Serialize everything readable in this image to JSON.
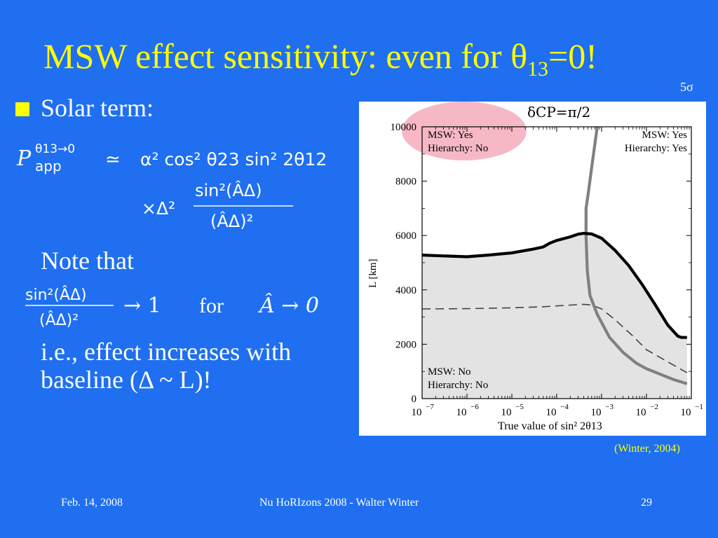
{
  "slide": {
    "title_main": "MSW effect sensitivity: even for θ",
    "title_sub": "13",
    "title_tail": "=0!",
    "significance": "5σ",
    "bullet": "Solar term:",
    "note": "Note that",
    "conclusion": "i.e., effect increases with baseline (Δ ~ L)!",
    "citation": "(Winter, 2004)"
  },
  "formula": {
    "P": "P",
    "P_sup": "θ13→0",
    "P_sub": "app",
    "approx": "≃",
    "rhs": "α² cos² θ23 sin² 2θ12",
    "times": "×Δ²",
    "frac_num": "sin²(ÂΔ)",
    "frac_den": "(ÂΔ)²"
  },
  "formula2": {
    "frac_num": "sin²(ÂΔ)",
    "frac_den": "(ÂΔ)²",
    "arrow": "→ 1",
    "for": "for",
    "limit": "Â → 0"
  },
  "footer": {
    "date": "Feb. 14, 2008",
    "talk": "Nu HoRIzons 2008 - Walter Winter",
    "page": "29"
  },
  "colors": {
    "background": "#1f6ff0",
    "title": "#ffff00",
    "highlight_ellipse": "#f7b8c6",
    "region_fill": "#e3e3e3"
  },
  "chart_data": {
    "type": "line",
    "title": "δCP=π/2",
    "xlabel": "True value of sin² 2θ13",
    "ylabel": "L [km]",
    "x_scale": "log",
    "xlim": [
      1e-07,
      0.1
    ],
    "ylim": [
      0,
      10000
    ],
    "x_ticks": [
      1e-07,
      1e-06,
      1e-05,
      0.0001,
      0.001,
      0.01,
      0.1
    ],
    "x_tick_labels": [
      "10",
      "10",
      "10",
      "10",
      "10",
      "10",
      "10"
    ],
    "x_tick_exponents": [
      "−7",
      "−6",
      "−5",
      "−4",
      "−3",
      "−2",
      "−1"
    ],
    "y_ticks": [
      0,
      2000,
      4000,
      6000,
      8000,
      10000
    ],
    "y_tick_labels": [
      "0",
      "2000",
      "4000",
      "6000",
      "8000",
      "10000"
    ],
    "region_labels": [
      {
        "lines": [
          "MSW: Yes",
          "Hierarchy: No"
        ],
        "position": "top-left",
        "highlighted": true
      },
      {
        "lines": [
          "MSW: Yes",
          "Hierarchy: Yes"
        ],
        "position": "top-right"
      },
      {
        "lines": [
          "MSW: No",
          "Hierarchy: No"
        ],
        "position": "bottom-left"
      }
    ],
    "series": [
      {
        "style": "thick-black",
        "x": [
          1e-07,
          3e-07,
          1e-06,
          3e-06,
          1e-05,
          3e-05,
          5e-05,
          7e-05,
          0.0001,
          0.0002,
          0.0003,
          0.0004,
          0.0006,
          0.001,
          0.002,
          0.004,
          0.008,
          0.015,
          0.03,
          0.05,
          0.06,
          0.08
        ],
        "y": [
          5280,
          5250,
          5220,
          5280,
          5360,
          5500,
          5580,
          5720,
          5820,
          5950,
          6050,
          6080,
          6060,
          5900,
          5450,
          4900,
          4200,
          3500,
          2700,
          2300,
          2250,
          2250
        ]
      },
      {
        "style": "thick-gray",
        "x": [
          0.0008,
          0.0006,
          0.0005,
          0.00045,
          0.00045,
          0.00048,
          0.00055,
          0.0008,
          0.0015,
          0.003,
          0.006,
          0.01,
          0.02,
          0.04,
          0.08
        ],
        "y": [
          10000,
          8500,
          7500,
          7000,
          6000,
          4700,
          3800,
          3100,
          2250,
          1700,
          1300,
          1100,
          900,
          700,
          550
        ]
      },
      {
        "style": "dashed",
        "x": [
          1e-07,
          1e-06,
          1e-05,
          5e-05,
          0.0001,
          0.0002,
          0.0004,
          0.0006,
          0.001,
          0.002,
          0.005,
          0.01,
          0.03,
          0.08
        ],
        "y": [
          3300,
          3310,
          3340,
          3380,
          3410,
          3440,
          3470,
          3440,
          3300,
          2900,
          2300,
          1800,
          1350,
          950
        ]
      }
    ]
  }
}
